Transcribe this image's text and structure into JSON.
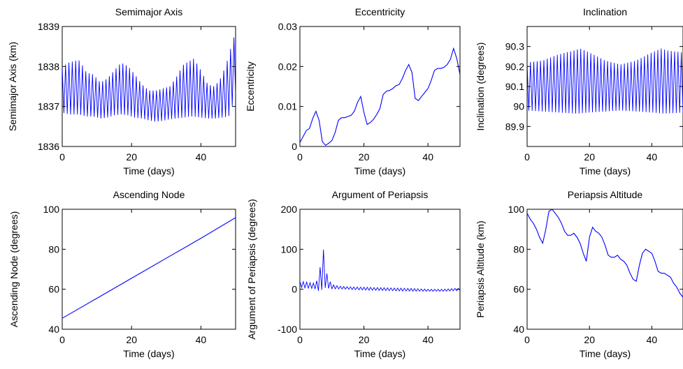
{
  "chart_data": [
    {
      "type": "line",
      "title": "Semimajor Axis",
      "xlabel": "Time (days)",
      "ylabel": "Semimajor Axis (km)",
      "xlim": [
        0,
        50
      ],
      "ylim": [
        1836,
        1839
      ],
      "xticks": [
        0,
        20,
        40
      ],
      "xtick_labels": [
        "0",
        "20",
        "40"
      ],
      "yticks": [
        1836,
        1837,
        1838,
        1839
      ],
      "ytick_labels": [
        "1836",
        "1837",
        "1838",
        "1839"
      ],
      "grid": false,
      "color": "#0000ff",
      "render": "band",
      "series": [
        {
          "x": [
            0,
            2,
            4,
            5,
            7,
            9,
            11,
            13,
            15,
            17,
            19,
            21,
            23,
            25,
            27,
            29,
            31,
            33,
            35,
            37,
            38,
            40,
            42,
            44,
            46,
            48,
            49,
            50
          ],
          "upper": [
            1838.0,
            1838.1,
            1838.15,
            1838.15,
            1837.85,
            1837.8,
            1837.6,
            1837.7,
            1837.9,
            1838.1,
            1838.0,
            1837.8,
            1837.55,
            1837.4,
            1837.4,
            1837.45,
            1837.5,
            1837.75,
            1838.05,
            1838.15,
            1838.2,
            1837.9,
            1837.55,
            1837.5,
            1837.75,
            1838.25,
            1838.6,
            1838.85
          ],
          "lower": [
            1836.85,
            1836.8,
            1836.8,
            1836.8,
            1836.75,
            1836.75,
            1836.7,
            1836.72,
            1836.78,
            1836.8,
            1836.78,
            1836.72,
            1836.7,
            1836.65,
            1836.62,
            1836.64,
            1836.68,
            1836.7,
            1836.72,
            1836.75,
            1836.75,
            1836.72,
            1836.7,
            1836.7,
            1836.72,
            1836.75,
            1837.0,
            1837.3
          ]
        }
      ]
    },
    {
      "type": "line",
      "title": "Eccentricity",
      "xlabel": "Time (days)",
      "ylabel": "Eccentricity",
      "xlim": [
        0,
        50
      ],
      "ylim": [
        0,
        0.03
      ],
      "xticks": [
        0,
        20,
        40
      ],
      "xtick_labels": [
        "0",
        "20",
        "40"
      ],
      "yticks": [
        0,
        0.01,
        0.02,
        0.03
      ],
      "ytick_labels": [
        "0",
        "0.01",
        "0.02",
        "0.03"
      ],
      "grid": false,
      "color": "#0000ff",
      "render": "line",
      "series": [
        {
          "x": [
            0,
            1,
            2,
            3,
            4,
            5,
            6,
            7,
            8,
            9,
            10,
            11,
            12,
            13,
            14,
            15,
            16,
            17,
            18,
            19,
            20,
            21,
            22,
            23,
            24,
            25,
            26,
            27,
            28,
            29,
            30,
            31,
            32,
            33,
            34,
            35,
            36,
            37,
            38,
            39,
            40,
            41,
            42,
            43,
            44,
            45,
            46,
            47,
            48,
            49,
            50
          ],
          "y": [
            0.001,
            0.0025,
            0.004,
            0.0045,
            0.007,
            0.0088,
            0.0065,
            0.0012,
            0.0003,
            0.0008,
            0.0015,
            0.0035,
            0.0065,
            0.0072,
            0.0072,
            0.0075,
            0.0078,
            0.0088,
            0.011,
            0.0125,
            0.0085,
            0.0055,
            0.006,
            0.0068,
            0.008,
            0.0095,
            0.013,
            0.0138,
            0.014,
            0.0145,
            0.0152,
            0.0155,
            0.017,
            0.019,
            0.0205,
            0.0185,
            0.012,
            0.0115,
            0.0125,
            0.0135,
            0.0145,
            0.0165,
            0.019,
            0.0195,
            0.0195,
            0.0198,
            0.0205,
            0.0218,
            0.0245,
            0.022,
            0.018
          ]
        }
      ]
    },
    {
      "type": "line",
      "title": "Inclination",
      "xlabel": "Time (days)",
      "ylabel": "Inclination (degrees)",
      "xlim": [
        0,
        50
      ],
      "ylim": [
        89.8,
        90.4
      ],
      "xticks": [
        0,
        20,
        40
      ],
      "xtick_labels": [
        "0",
        "20",
        "40"
      ],
      "yticks": [
        89.9,
        90,
        90.1,
        90.2,
        90.3
      ],
      "ytick_labels": [
        "89.9",
        "90",
        "90.1",
        "90.2",
        "90.3"
      ],
      "grid": false,
      "color": "#0000ff",
      "render": "band",
      "series": [
        {
          "x": [
            0,
            5,
            10,
            15,
            17,
            20,
            25,
            30,
            35,
            40,
            43,
            45,
            50
          ],
          "upper": [
            90.22,
            90.23,
            90.26,
            90.28,
            90.29,
            90.27,
            90.23,
            90.21,
            90.23,
            90.27,
            90.29,
            90.28,
            90.27
          ],
          "lower": [
            89.98,
            89.975,
            89.97,
            89.965,
            89.965,
            89.97,
            89.975,
            89.98,
            89.975,
            89.97,
            89.965,
            89.965,
            89.97
          ]
        }
      ]
    },
    {
      "type": "line",
      "title": "Ascending Node",
      "xlabel": "Time (days)",
      "ylabel": "Ascending Node (degrees)",
      "xlim": [
        0,
        50
      ],
      "ylim": [
        40,
        100
      ],
      "xticks": [
        0,
        20,
        40
      ],
      "xtick_labels": [
        "0",
        "20",
        "40"
      ],
      "yticks": [
        40,
        60,
        80,
        100
      ],
      "ytick_labels": [
        "40",
        "60",
        "80",
        "100"
      ],
      "grid": false,
      "color": "#0000ff",
      "render": "line",
      "series": [
        {
          "x": [
            0,
            10,
            20,
            30,
            40,
            50
          ],
          "y": [
            45.5,
            55.5,
            65.5,
            75.5,
            85.5,
            95.8
          ]
        }
      ]
    },
    {
      "type": "line",
      "title": "Argument of Periapsis",
      "xlabel": "Time (days)",
      "ylabel": "Argument of Periapsis (degrees)",
      "xlim": [
        0,
        50
      ],
      "ylim": [
        -100,
        200
      ],
      "xticks": [
        0,
        20,
        40
      ],
      "xtick_labels": [
        "0",
        "20",
        "40"
      ],
      "yticks": [
        -100,
        0,
        100,
        200
      ],
      "ytick_labels": [
        "-100",
        "0",
        "100",
        "200"
      ],
      "grid": false,
      "color": "#0000ff",
      "render": "band",
      "series": [
        {
          "x": [
            0,
            2,
            4,
            5,
            6,
            6.5,
            7,
            7.5,
            8,
            9,
            10,
            12,
            15,
            20,
            25,
            30,
            35,
            40,
            45,
            48,
            50
          ],
          "upper": [
            20,
            18,
            15,
            18,
            30,
            70,
            125,
            90,
            50,
            25,
            12,
            8,
            6,
            5,
            4,
            3,
            2,
            0,
            0,
            2,
            2
          ],
          "lower": [
            5,
            3,
            2,
            0,
            -5,
            -5,
            0,
            5,
            3,
            2,
            1,
            1,
            0,
            -2,
            -3,
            -4,
            -5,
            -5,
            -5,
            -4,
            -3
          ]
        }
      ]
    },
    {
      "type": "line",
      "title": "Periapsis Altitude",
      "xlabel": "Time (days)",
      "ylabel": "Periapsis Altitude (km)",
      "xlim": [
        0,
        50
      ],
      "ylim": [
        40,
        100
      ],
      "xticks": [
        0,
        20,
        40
      ],
      "xtick_labels": [
        "0",
        "20",
        "40"
      ],
      "yticks": [
        40,
        60,
        80,
        100
      ],
      "ytick_labels": [
        "40",
        "60",
        "80",
        "100"
      ],
      "grid": false,
      "color": "#0000ff",
      "render": "line",
      "series": [
        {
          "x": [
            0,
            1,
            2,
            3,
            4,
            5,
            6,
            7,
            8,
            9,
            10,
            11,
            12,
            13,
            14,
            15,
            16,
            17,
            18,
            19,
            20,
            21,
            22,
            23,
            24,
            25,
            26,
            27,
            28,
            29,
            30,
            31,
            32,
            33,
            34,
            35,
            36,
            37,
            38,
            39,
            40,
            41,
            42,
            43,
            44,
            45,
            46,
            47,
            48,
            49,
            50
          ],
          "y": [
            98,
            95,
            93,
            90,
            86,
            83,
            90,
            99,
            100,
            98,
            96,
            93,
            89,
            87,
            87,
            88,
            86,
            83,
            78,
            74,
            86,
            91,
            89,
            88,
            86,
            82,
            77,
            76,
            76,
            77,
            75,
            74,
            72,
            68,
            65,
            64,
            72,
            78,
            80,
            79,
            78,
            74,
            69,
            68,
            68,
            67,
            66,
            63,
            61,
            58,
            56
          ]
        }
      ]
    }
  ]
}
